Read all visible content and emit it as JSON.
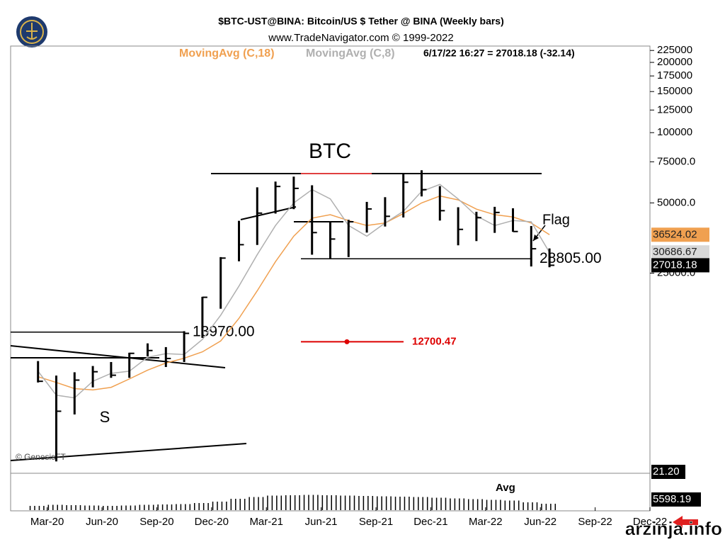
{
  "chart_data": {
    "type": "hlc",
    "title": "$BTC-UST@BINA:  Bitcoin/US $ Tether @ BINA  (Weekly bars)",
    "subtitle": "www.TradeNavigator.com © 1999-2022",
    "status": "6/17/22 16:27 = 27018.18 (-32.14)",
    "log_scale": true,
    "x": [
      "2020-02",
      "2020-03",
      "2020-04",
      "2020-05",
      "2020-06",
      "2020-07",
      "2020-08",
      "2020-09",
      "2020-10",
      "2020-11",
      "2020-12",
      "2021-01",
      "2021-02",
      "2021-03",
      "2021-04",
      "2021-05",
      "2021-06",
      "2021-07",
      "2021-08",
      "2021-09",
      "2021-10",
      "2021-11",
      "2021-12",
      "2022-01",
      "2022-02",
      "2022-03",
      "2022-04",
      "2022-05",
      "2022-06"
    ],
    "high": [
      10500,
      9100,
      9400,
      10000,
      10400,
      11400,
      12500,
      12050,
      14100,
      19800,
      29300,
      41900,
      58300,
      61700,
      64800,
      59500,
      41300,
      42300,
      50500,
      52900,
      67000,
      69000,
      59000,
      47900,
      45800,
      48100,
      47400,
      39800,
      31900
    ],
    "low": [
      8500,
      3900,
      6200,
      8100,
      8900,
      8900,
      11000,
      9900,
      10400,
      13200,
      17600,
      28100,
      33000,
      45000,
      47000,
      30000,
      28800,
      29300,
      37300,
      39600,
      43300,
      53300,
      42000,
      32900,
      34300,
      37200,
      37600,
      26700,
      26500
    ],
    "close": [
      8600,
      6400,
      8700,
      9450,
      9130,
      11330,
      11650,
      10770,
      13800,
      19700,
      29000,
      33100,
      45200,
      58800,
      57700,
      37300,
      35000,
      41500,
      47100,
      43800,
      61300,
      57000,
      46300,
      38500,
      43200,
      45500,
      37700,
      31800,
      27018.18
    ],
    "bar_color": "#000000",
    "series": [
      {
        "name": "MovingAvg (C,18)",
        "color": "#f0a050",
        "values": [
          9000,
          8500,
          8000,
          7900,
          8100,
          8800,
          9600,
          10300,
          10800,
          11500,
          12800,
          16000,
          21000,
          28000,
          36000,
          43000,
          44500,
          42000,
          40000,
          41000,
          45000,
          50000,
          53500,
          51500,
          47000,
          44500,
          43500,
          41000,
          36524.02
        ]
      },
      {
        "name": "MovingAvg (C,8)",
        "color": "#b0b0b0",
        "values": [
          9500,
          7500,
          7300,
          8600,
          9300,
          9500,
          10900,
          11300,
          11200,
          13000,
          16500,
          22000,
          30000,
          40000,
          50000,
          57000,
          52000,
          40000,
          36000,
          41000,
          46000,
          56000,
          60000,
          52000,
          44000,
          40000,
          42000,
          41500,
          30686.67
        ]
      }
    ],
    "ylim": [
      3800,
      235000
    ],
    "yticks": [
      225000,
      200000,
      175000,
      150000,
      125000,
      100000,
      {
        "value": 75000,
        "label": "75000.0"
      },
      {
        "value": 50000,
        "label": "50000.0"
      },
      {
        "value": 25000,
        "label": "25000.0"
      }
    ],
    "xlim": [
      "2020-01",
      "2022-12"
    ],
    "xticks": [
      {
        "value": "2020-03",
        "label": "Mar-20"
      },
      {
        "value": "2020-06",
        "label": "Jun-20"
      },
      {
        "value": "2020-09",
        "label": "Sep-20"
      },
      {
        "value": "2020-12",
        "label": "Dec-20"
      },
      {
        "value": "2021-03",
        "label": "Mar-21"
      },
      {
        "value": "2021-06",
        "label": "Jun-21"
      },
      {
        "value": "2021-09",
        "label": "Sep-21"
      },
      {
        "value": "2021-12",
        "label": "Dec-21"
      },
      {
        "value": "2022-03",
        "label": "Mar-22"
      },
      {
        "value": "2022-06",
        "label": "Jun-22"
      },
      {
        "value": "2022-09",
        "label": "Sep-22"
      },
      {
        "value": "2022-12",
        "label": "Dec-22"
      }
    ],
    "price_boxes": [
      {
        "label": "36524.02",
        "value": 36524.02,
        "color": "#f0a050"
      },
      {
        "label": "30686.67",
        "value": 30686.67,
        "color": "#d8d8d8"
      },
      {
        "label": "27018.18",
        "value": 27018.18,
        "color": "#000000"
      }
    ],
    "levels": [
      {
        "text": "28805.00",
        "value": 28805,
        "color": "#000000"
      },
      {
        "text": "13970.00",
        "value": 13970,
        "color": "#000000"
      },
      {
        "text": "12700.47",
        "value": 12700.47,
        "color": "#dd0000"
      }
    ],
    "annotations": [
      "BTC",
      "Flag",
      "S",
      "© GenesisFT"
    ],
    "volume": {
      "label": "Avg",
      "values": [
        1200,
        1500,
        1400,
        1300,
        1200,
        1300,
        1500,
        1600,
        1700,
        2000,
        2400,
        3200,
        3700,
        4100,
        4200,
        4300,
        4200,
        4100,
        4000,
        3900,
        3800,
        3700,
        3500,
        3300,
        3100,
        2900,
        2700,
        2200,
        1800
      ],
      "ylim": [
        0,
        8000
      ],
      "readouts": [
        "21.20",
        "5598.19"
      ]
    },
    "watermark": "arzinja.info"
  }
}
